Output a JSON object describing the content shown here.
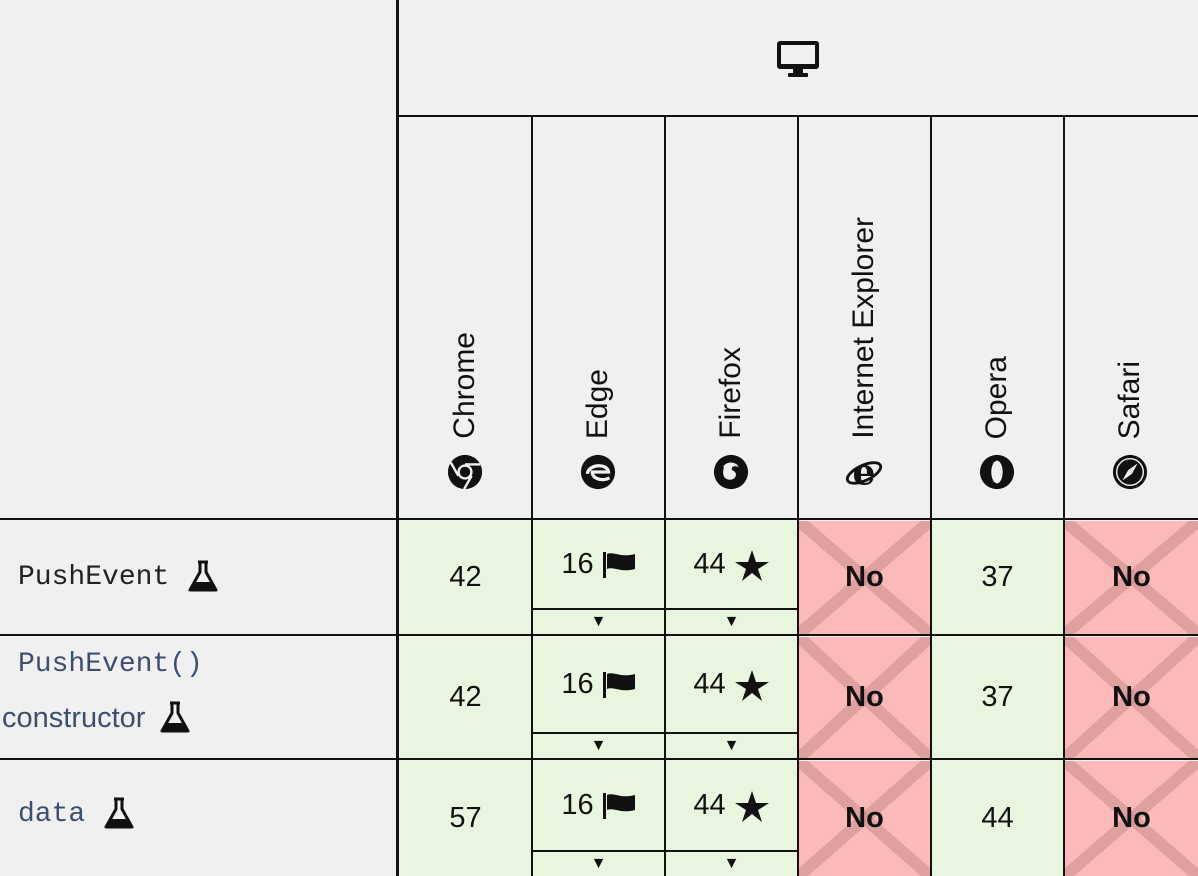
{
  "header": {
    "platform_icon": "desktop-icon",
    "browsers": [
      {
        "name": "Chrome",
        "icon": "chrome-icon"
      },
      {
        "name": "Edge",
        "icon": "edge-icon"
      },
      {
        "name": "Firefox",
        "icon": "firefox-icon"
      },
      {
        "name": "Internet Explorer",
        "icon": "internet-explorer-icon"
      },
      {
        "name": "Opera",
        "icon": "opera-icon"
      },
      {
        "name": "Safari",
        "icon": "safari-icon"
      }
    ]
  },
  "rows": [
    {
      "feature": "PushEvent",
      "experimental_icon": "flask-icon",
      "cells": [
        {
          "value": "42",
          "status": "yes"
        },
        {
          "value": "16",
          "status": "yes",
          "note_icon": "flag-icon",
          "expand": "▼"
        },
        {
          "value": "44",
          "status": "yes",
          "note_icon": "star-icon",
          "expand": "▼"
        },
        {
          "value": "No",
          "status": "no"
        },
        {
          "value": "37",
          "status": "yes"
        },
        {
          "value": "No",
          "status": "no"
        }
      ]
    },
    {
      "feature": "PushEvent()",
      "feature_suffix": "constructor",
      "experimental_icon": "flask-icon",
      "cells": [
        {
          "value": "42",
          "status": "yes"
        },
        {
          "value": "16",
          "status": "yes",
          "note_icon": "flag-icon",
          "expand": "▼"
        },
        {
          "value": "44",
          "status": "yes",
          "note_icon": "star-icon",
          "expand": "▼"
        },
        {
          "value": "No",
          "status": "no"
        },
        {
          "value": "37",
          "status": "yes"
        },
        {
          "value": "No",
          "status": "no"
        }
      ]
    },
    {
      "feature": "data",
      "experimental_icon": "flask-icon",
      "cells": [
        {
          "value": "57",
          "status": "yes"
        },
        {
          "value": "16",
          "status": "yes",
          "note_icon": "flag-icon",
          "expand": "▼"
        },
        {
          "value": "44",
          "status": "yes",
          "note_icon": "star-icon",
          "expand": "▼"
        },
        {
          "value": "No",
          "status": "no"
        },
        {
          "value": "44",
          "status": "yes"
        },
        {
          "value": "No",
          "status": "no"
        }
      ]
    }
  ]
}
